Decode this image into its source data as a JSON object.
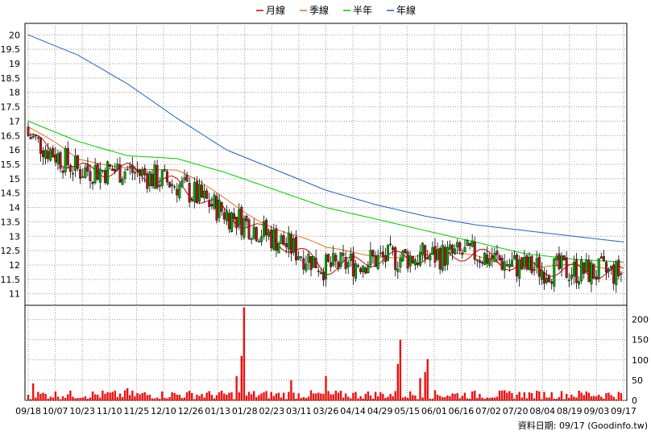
{
  "chart_data": {
    "type": "candlestick",
    "legend": [
      {
        "label": "月線",
        "color": "#cc0000"
      },
      {
        "label": "季線",
        "color": "#e07020"
      },
      {
        "label": "半年",
        "color": "#00cc00"
      },
      {
        "label": "年線",
        "color": "#2060cc"
      }
    ],
    "colors": {
      "up": "#00aa00",
      "down": "#b01818",
      "volume": "#ee1111",
      "grid": "#999999"
    },
    "price_axis": {
      "ticks": [
        "20",
        "19.5",
        "19",
        "18.5",
        "18",
        "17.5",
        "17",
        "16.5",
        "16",
        "15.5",
        "15",
        "14.5",
        "14",
        "13.5",
        "13",
        "12.5",
        "12",
        "11.5",
        "11"
      ],
      "ylim": [
        10.5,
        20.3
      ]
    },
    "volume_axis": {
      "ticks": [
        "200",
        "150",
        "100",
        "50",
        "0"
      ],
      "ylim": [
        0,
        235
      ]
    },
    "x_ticks": [
      "09/18",
      "10/07",
      "10/23",
      "11/10",
      "11/25",
      "12/10",
      "12/26",
      "01/13",
      "01/28",
      "02/23",
      "03/11",
      "03/26",
      "04/14",
      "04/29",
      "05/15",
      "06/01",
      "06/16",
      "07/02",
      "07/20",
      "08/04",
      "08/19",
      "09/03",
      "09/17"
    ],
    "footer": "資料日期: 09/17  (Goodinfo.tw)",
    "ma_lines": [
      {
        "name": "年線",
        "x": [
          0,
          20,
          40,
          60,
          80,
          100,
          120,
          140,
          160,
          180,
          200,
          220,
          240
        ],
        "y": [
          20.0,
          19.3,
          18.3,
          17.1,
          16.0,
          15.3,
          14.6,
          14.1,
          13.7,
          13.4,
          13.2,
          13.0,
          12.8
        ]
      },
      {
        "name": "半年",
        "x": [
          0,
          20,
          40,
          60,
          80,
          100,
          120,
          140,
          160,
          180,
          200,
          220,
          240
        ],
        "y": [
          17.0,
          16.3,
          15.8,
          15.7,
          15.2,
          14.6,
          14.0,
          13.6,
          13.2,
          12.8,
          12.4,
          12.2,
          12.1
        ]
      },
      {
        "name": "季線",
        "x": [
          0,
          20,
          40,
          60,
          80,
          100,
          120,
          140,
          160,
          180,
          200,
          220,
          240
        ],
        "y": [
          16.8,
          15.6,
          15.5,
          15.2,
          14.3,
          13.3,
          12.5,
          12.4,
          12.3,
          12.3,
          12.0,
          11.9,
          11.8
        ]
      },
      {
        "name": "月線",
        "x": [
          0,
          20,
          40,
          60,
          80,
          100,
          120,
          140,
          160,
          180,
          200,
          220,
          240
        ],
        "y": [
          16.5,
          15.3,
          15.3,
          14.8,
          13.8,
          12.9,
          11.9,
          12.2,
          12.3,
          12.4,
          11.9,
          11.8,
          11.7
        ]
      }
    ]
  }
}
